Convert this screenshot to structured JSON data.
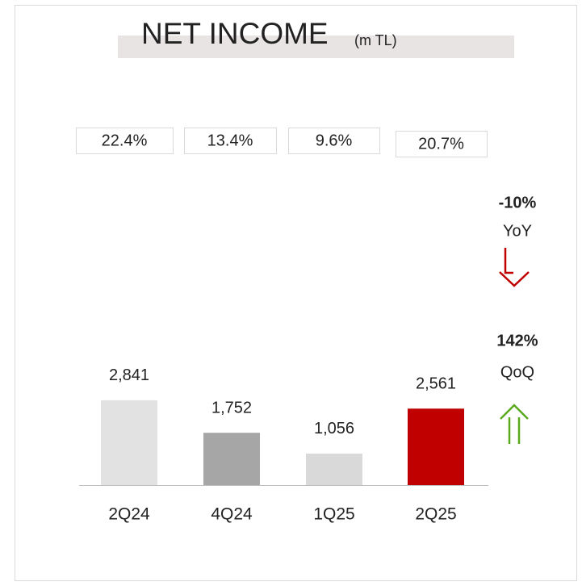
{
  "chart_data": {
    "type": "bar",
    "title": "NET INCOME",
    "title_unit": "(m TL)",
    "categories": [
      "2Q24",
      "4Q24",
      "1Q25",
      "2Q25"
    ],
    "values": [
      2841,
      1752,
      1056,
      2561
    ],
    "value_labels": [
      "2,841",
      "1,752",
      "1,056",
      "2,561"
    ],
    "colors": [
      "#e2e2e2",
      "#a6a6a6",
      "#d9d9d9",
      "#c00000"
    ],
    "ylim": [
      0,
      3000
    ],
    "box_labels": [
      "22.4%",
      "13.4%",
      "9.6%",
      "20.7%"
    ],
    "yoy": {
      "change": "-10%",
      "label": "YoY"
    },
    "qoq": {
      "change": "142%",
      "label": "QoQ"
    }
  }
}
